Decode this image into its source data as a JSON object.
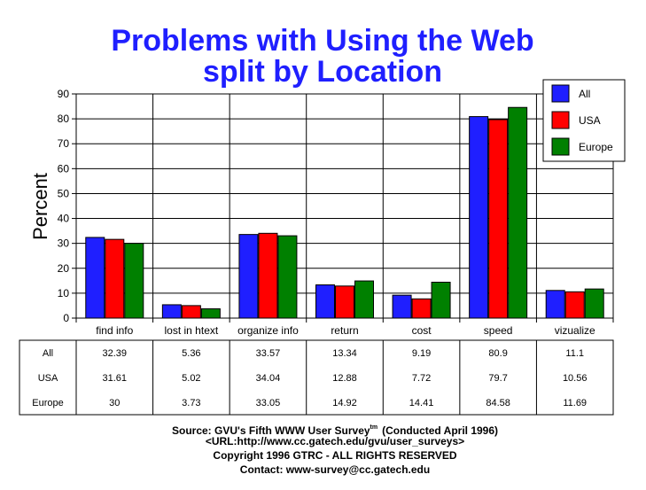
{
  "chart_data": {
    "type": "bar",
    "title": [
      "Problems with Using the Web",
      "split by Location"
    ],
    "ylabel": "Percent",
    "xlabel": "",
    "ylim": [
      0,
      90
    ],
    "yticks": [
      0,
      10,
      20,
      30,
      40,
      50,
      60,
      70,
      80,
      90
    ],
    "grid": true,
    "legend_position": "top-right",
    "categories": [
      "find info",
      "lost in htext",
      "organize info",
      "return",
      "cost",
      "speed",
      "vizualize"
    ],
    "series": [
      {
        "name": "All",
        "color": "#1f1fff",
        "values": [
          32.39,
          5.36,
          33.57,
          13.34,
          9.19,
          80.9,
          11.1
        ]
      },
      {
        "name": "USA",
        "color": "#ff0000",
        "values": [
          31.61,
          5.02,
          34.04,
          12.88,
          7.72,
          79.7,
          10.56
        ]
      },
      {
        "name": "Europe",
        "color": "#008000",
        "values": [
          30,
          3.73,
          33.05,
          14.92,
          14.41,
          84.58,
          11.69
        ]
      }
    ],
    "table": {
      "row_labels": [
        "All",
        "USA",
        "Europe"
      ],
      "rows": [
        [
          "32.39",
          "5.36",
          "33.57",
          "13.34",
          "9.19",
          "80.9",
          "11.1"
        ],
        [
          "31.61",
          "5.02",
          "34.04",
          "12.88",
          "7.72",
          "79.7",
          "10.56"
        ],
        [
          "30",
          "3.73",
          "33.05",
          "14.92",
          "14.41",
          "84.58",
          "11.69"
        ]
      ]
    }
  },
  "footer": {
    "source": "Source: GVU's Fifth WWW User Survey",
    "source_sup": "tm",
    "source_tail": "(Conducted April 1996)",
    "url": "<URL:http://www.cc.gatech.edu/gvu/user_surveys>",
    "copyright": "Copyright 1996 GTRC -  ALL RIGHTS RESERVED",
    "contact": "Contact: www-survey@cc.gatech.edu"
  }
}
